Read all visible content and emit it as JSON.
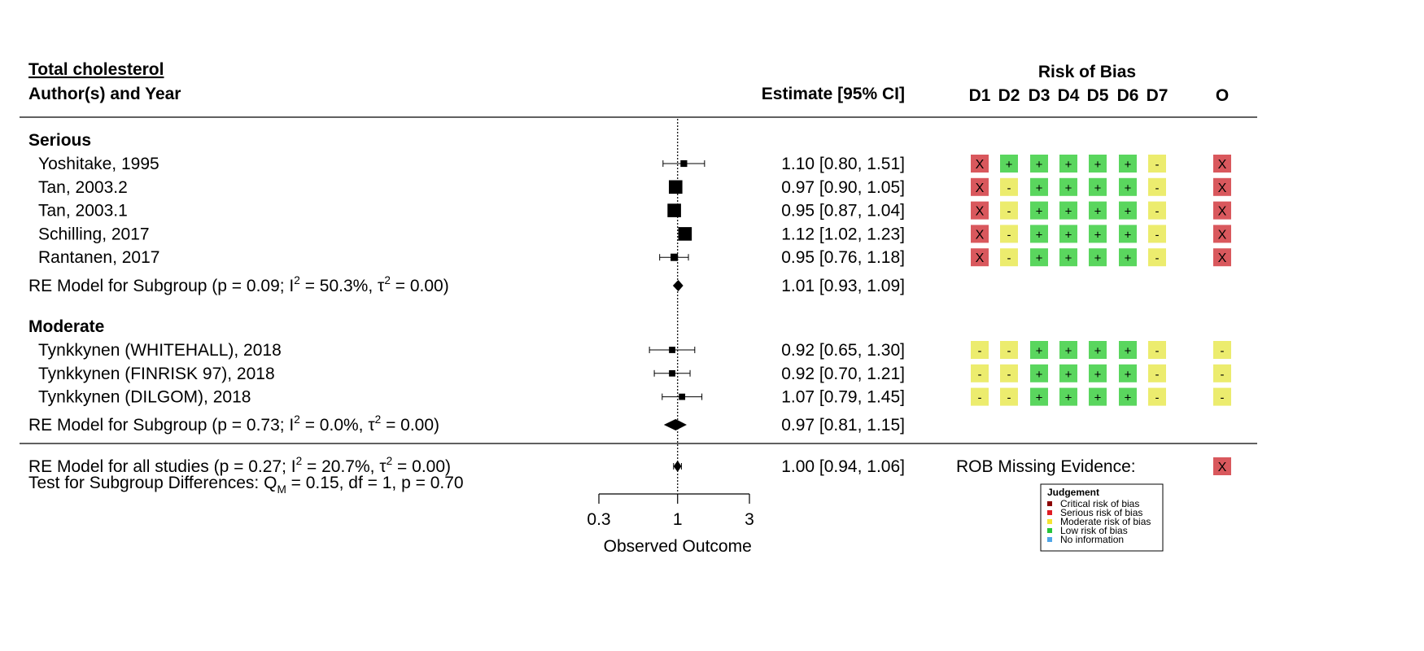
{
  "chart_data": {
    "type": "forest",
    "title": "Total cholesterol",
    "header": {
      "study": "Author(s) and Year",
      "estimate": "Estimate [95% CI]",
      "rob_title": "Risk of Bias",
      "domains": [
        "D1",
        "D2",
        "D3",
        "D4",
        "D5",
        "D6",
        "D7"
      ],
      "overall": "O"
    },
    "x_axis": {
      "label": "Observed Outcome",
      "scale": "log",
      "range": [
        0.3,
        3
      ],
      "ticks": [
        0.3,
        1,
        3
      ],
      "tick_labels": [
        "0.3",
        "1",
        "3"
      ],
      "reference_line": 1
    },
    "groups": [
      {
        "label": "Serious",
        "studies": [
          {
            "name": "Yoshitake, 1995",
            "est": 1.1,
            "lo": 0.8,
            "hi": 1.51,
            "ci_text": "1.10 [0.80, 1.51]",
            "weight": 1.0,
            "rob": [
              "X",
              "+",
              "+",
              "+",
              "+",
              "+",
              "-"
            ],
            "overall": "X"
          },
          {
            "name": "Tan, 2003.2",
            "est": 0.97,
            "lo": 0.9,
            "hi": 1.05,
            "ci_text": "0.97 [0.90, 1.05]",
            "weight": 3.0,
            "rob": [
              "X",
              "-",
              "+",
              "+",
              "+",
              "+",
              "-"
            ],
            "overall": "X"
          },
          {
            "name": "Tan, 2003.1",
            "est": 0.95,
            "lo": 0.87,
            "hi": 1.04,
            "ci_text": "0.95 [0.87, 1.04]",
            "weight": 3.0,
            "rob": [
              "X",
              "-",
              "+",
              "+",
              "+",
              "+",
              "-"
            ],
            "overall": "X"
          },
          {
            "name": "Schilling, 2017",
            "est": 1.12,
            "lo": 1.02,
            "hi": 1.23,
            "ci_text": "1.12 [1.02, 1.23]",
            "weight": 3.0,
            "rob": [
              "X",
              "-",
              "+",
              "+",
              "+",
              "+",
              "-"
            ],
            "overall": "X"
          },
          {
            "name": "Rantanen, 2017",
            "est": 0.95,
            "lo": 0.76,
            "hi": 1.18,
            "ci_text": "0.95 [0.76, 1.18]",
            "weight": 1.2,
            "rob": [
              "X",
              "-",
              "+",
              "+",
              "+",
              "+",
              "-"
            ],
            "overall": "X"
          }
        ],
        "summary": {
          "label": "RE Model for Subgroup (p = 0.09; I",
          "sup": "2",
          "mid": " = 50.3%, τ",
          "sup2": "2",
          "tail": " = 0.00)",
          "est": 1.01,
          "lo": 0.93,
          "hi": 1.09,
          "ci_text": "1.01 [0.93, 1.09]"
        }
      },
      {
        "label": "Moderate",
        "studies": [
          {
            "name": "Tynkkynen (WHITEHALL), 2018",
            "est": 0.92,
            "lo": 0.65,
            "hi": 1.3,
            "ci_text": "0.92 [0.65, 1.30]",
            "weight": 0.9,
            "rob": [
              "-",
              "-",
              "+",
              "+",
              "+",
              "+",
              "-"
            ],
            "overall": "-"
          },
          {
            "name": "Tynkkynen (FINRISK 97), 2018",
            "est": 0.92,
            "lo": 0.7,
            "hi": 1.21,
            "ci_text": "0.92 [0.70, 1.21]",
            "weight": 0.9,
            "rob": [
              "-",
              "-",
              "+",
              "+",
              "+",
              "+",
              "-"
            ],
            "overall": "-"
          },
          {
            "name": "Tynkkynen (DILGOM), 2018",
            "est": 1.07,
            "lo": 0.79,
            "hi": 1.45,
            "ci_text": "1.07 [0.79, 1.45]",
            "weight": 0.9,
            "rob": [
              "-",
              "-",
              "+",
              "+",
              "+",
              "+",
              "-"
            ],
            "overall": "-"
          }
        ],
        "summary": {
          "label": "RE Model for Subgroup (p = 0.73; I",
          "sup": "2",
          "mid": " = 0.0%, τ",
          "sup2": "2",
          "tail": " = 0.00)",
          "est": 0.97,
          "lo": 0.81,
          "hi": 1.15,
          "ci_text": "0.97 [0.81, 1.15]"
        }
      }
    ],
    "overall": {
      "label": "RE Model for all studies (p = 0.27; I",
      "sup": "2",
      "mid": " = 20.7%, τ",
      "sup2": "2",
      "tail": " = 0.00)",
      "est": 1.0,
      "lo": 0.94,
      "hi": 1.06,
      "ci_text": "1.00 [0.94, 1.06]",
      "rob_missing_label": "ROB Missing Evidence:",
      "rob_missing": "X"
    },
    "subgroup_test": {
      "prefix": "Test for Subgroup Differences: Q",
      "sub": "M",
      "tail": " = 0.15, df = 1, p = 0.70"
    },
    "legend": {
      "title": "Judgement",
      "items": [
        {
          "label": "Critical risk of bias",
          "color": "#8b0000"
        },
        {
          "label": "Serious risk of bias",
          "color": "#e01c24"
        },
        {
          "label": "Moderate risk of bias",
          "color": "#f5e431"
        },
        {
          "label": "Low risk of bias",
          "color": "#27c43a"
        },
        {
          "label": "No information",
          "color": "#4ea5e8"
        }
      ]
    },
    "rob_colors": {
      "X": "#d9585d",
      "-": "#ecec6e",
      "+": "#5ad65e"
    }
  }
}
